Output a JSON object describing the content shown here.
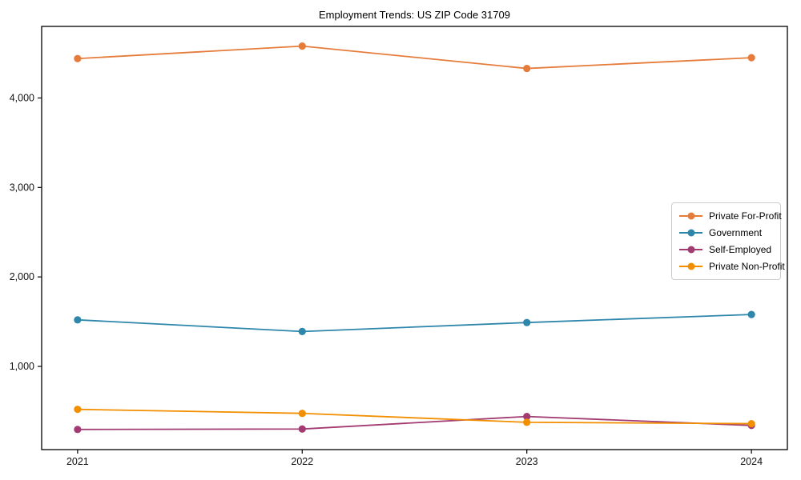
{
  "chart_data": {
    "type": "line",
    "title": "Employment Trends: US ZIP Code 31709",
    "x": [
      2021,
      2022,
      2023,
      2024
    ],
    "x_tick_labels": [
      "2021",
      "2022",
      "2023",
      "2024"
    ],
    "y_ticks": [
      1000,
      2000,
      3000,
      4000
    ],
    "y_tick_labels": [
      "1,000",
      "2,000",
      "3,000",
      "4,000"
    ],
    "xlim": [
      2020.84,
      2024.16
    ],
    "ylim": [
      70,
      4800
    ],
    "xlabel": "",
    "ylabel": "",
    "grid": false,
    "legend_position": "center-right",
    "marker": "circle",
    "series": [
      {
        "name": "Private For-Profit",
        "color": "#E67C3C",
        "values": [
          4440,
          4580,
          4330,
          4450
        ]
      },
      {
        "name": "Government",
        "color": "#2E86AB",
        "values": [
          1520,
          1390,
          1490,
          1580
        ]
      },
      {
        "name": "Self-Employed",
        "color": "#A23B72",
        "values": [
          295,
          300,
          440,
          340
        ]
      },
      {
        "name": "Private Non-Profit",
        "color": "#F18F01",
        "values": [
          520,
          475,
          375,
          360
        ]
      }
    ],
    "axis_color": "#000000",
    "tick_label_color": "#111111",
    "plot_background": "#ffffff"
  }
}
